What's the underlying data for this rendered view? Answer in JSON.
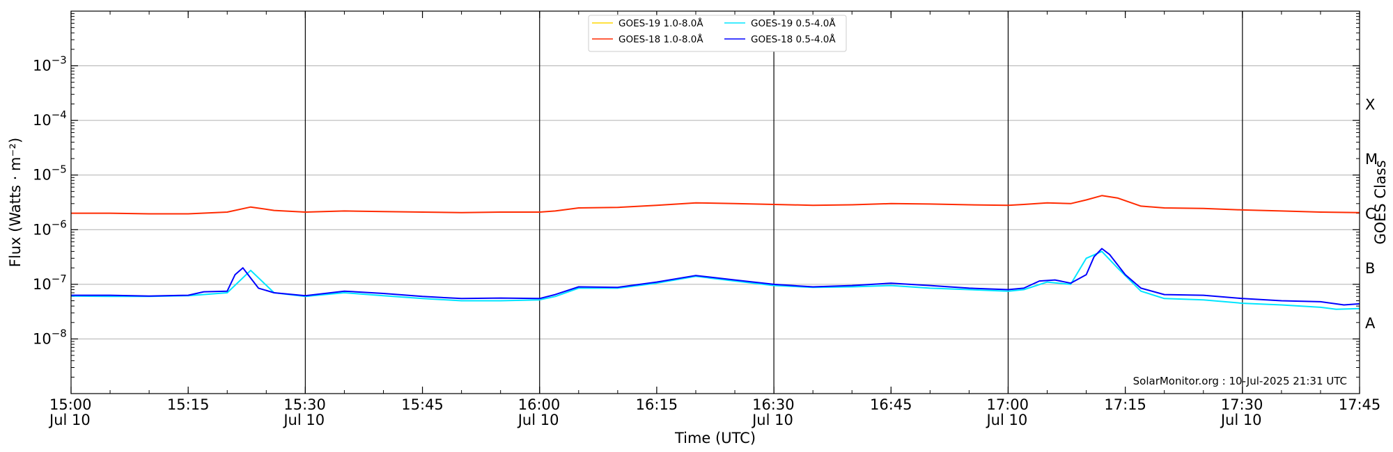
{
  "chart_data": {
    "type": "line",
    "title": "",
    "xlabel": "Time (UTC)",
    "ylabel": "Flux (Watts · m⁻²)",
    "y2label": "GOES Class",
    "yscale": "log",
    "ylim": [
      1e-09,
      0.01
    ],
    "xlim": [
      "15:00",
      "17:45"
    ],
    "grid": true,
    "legend_position": "top-center",
    "x_ticks": [
      {
        "t": "15:00",
        "label": "15:00",
        "sub": "Jul 10"
      },
      {
        "t": "15:15",
        "label": "15:15",
        "sub": ""
      },
      {
        "t": "15:30",
        "label": "15:30",
        "sub": "Jul 10"
      },
      {
        "t": "15:45",
        "label": "15:45",
        "sub": ""
      },
      {
        "t": "16:00",
        "label": "16:00",
        "sub": "Jul 10"
      },
      {
        "t": "16:15",
        "label": "16:15",
        "sub": ""
      },
      {
        "t": "16:30",
        "label": "16:30",
        "sub": "Jul 10"
      },
      {
        "t": "16:45",
        "label": "16:45",
        "sub": ""
      },
      {
        "t": "17:00",
        "label": "17:00",
        "sub": "Jul 10"
      },
      {
        "t": "17:15",
        "label": "17:15",
        "sub": ""
      },
      {
        "t": "17:30",
        "label": "17:30",
        "sub": "Jul 10"
      },
      {
        "t": "17:45",
        "label": "17:45",
        "sub": ""
      }
    ],
    "vlines": [
      "15:30",
      "16:00",
      "16:30",
      "17:00",
      "17:30"
    ],
    "y_ticks": [
      {
        "base": "10",
        "exp": "−3",
        "value": 0.001
      },
      {
        "base": "10",
        "exp": "−4",
        "value": 0.0001
      },
      {
        "base": "10",
        "exp": "−5",
        "value": 1e-05
      },
      {
        "base": "10",
        "exp": "−6",
        "value": 1e-06
      },
      {
        "base": "10",
        "exp": "−7",
        "value": 1e-07
      },
      {
        "base": "10",
        "exp": "−8",
        "value": 1e-08
      }
    ],
    "goes_classes": [
      {
        "label": "X",
        "value": 0.0002
      },
      {
        "label": "M",
        "value": 2e-05
      },
      {
        "label": "C",
        "value": 2e-06
      },
      {
        "label": "B",
        "value": 2e-07
      },
      {
        "label": "A",
        "value": 2e-08
      }
    ],
    "annotation": "SolarMonitor.org : 10-Jul-2025 21:31 UTC",
    "series": [
      {
        "name": "GOES-19 1.0-8.0Å",
        "color": "#ffd700",
        "points": []
      },
      {
        "name": "GOES-18 1.0-8.0Å",
        "color": "#ff2a00",
        "points": [
          [
            "15:00",
            2e-06
          ],
          [
            "15:05",
            2e-06
          ],
          [
            "15:10",
            1.95e-06
          ],
          [
            "15:15",
            1.95e-06
          ],
          [
            "15:20",
            2.1e-06
          ],
          [
            "15:23",
            2.6e-06
          ],
          [
            "15:26",
            2.25e-06
          ],
          [
            "15:30",
            2.1e-06
          ],
          [
            "15:35",
            2.2e-06
          ],
          [
            "15:40",
            2.15e-06
          ],
          [
            "15:45",
            2.1e-06
          ],
          [
            "15:50",
            2.05e-06
          ],
          [
            "15:55",
            2.1e-06
          ],
          [
            "16:00",
            2.1e-06
          ],
          [
            "16:02",
            2.2e-06
          ],
          [
            "16:05",
            2.5e-06
          ],
          [
            "16:10",
            2.55e-06
          ],
          [
            "16:15",
            2.8e-06
          ],
          [
            "16:20",
            3.1e-06
          ],
          [
            "16:25",
            3e-06
          ],
          [
            "16:30",
            2.9e-06
          ],
          [
            "16:35",
            2.8e-06
          ],
          [
            "16:40",
            2.85e-06
          ],
          [
            "16:45",
            3e-06
          ],
          [
            "16:50",
            2.95e-06
          ],
          [
            "16:55",
            2.85e-06
          ],
          [
            "17:00",
            2.8e-06
          ],
          [
            "17:02",
            2.9e-06
          ],
          [
            "17:05",
            3.1e-06
          ],
          [
            "17:08",
            3e-06
          ],
          [
            "17:10",
            3.5e-06
          ],
          [
            "17:12",
            4.2e-06
          ],
          [
            "17:14",
            3.8e-06
          ],
          [
            "17:17",
            2.7e-06
          ],
          [
            "17:20",
            2.5e-06
          ],
          [
            "17:25",
            2.45e-06
          ],
          [
            "17:30",
            2.3e-06
          ],
          [
            "17:35",
            2.2e-06
          ],
          [
            "17:40",
            2.1e-06
          ],
          [
            "17:45",
            2.05e-06
          ]
        ]
      },
      {
        "name": "GOES-19 0.5-4.0Å",
        "color": "#00e5ff",
        "points": [
          [
            "15:00",
            6.1e-08
          ],
          [
            "15:05",
            6e-08
          ],
          [
            "15:10",
            6e-08
          ],
          [
            "15:15",
            6.2e-08
          ],
          [
            "15:20",
            7e-08
          ],
          [
            "15:23",
            1.8e-07
          ],
          [
            "15:26",
            7e-08
          ],
          [
            "15:30",
            6e-08
          ],
          [
            "15:35",
            7e-08
          ],
          [
            "15:40",
            6.2e-08
          ],
          [
            "15:45",
            5.5e-08
          ],
          [
            "15:50",
            5e-08
          ],
          [
            "15:55",
            5e-08
          ],
          [
            "16:00",
            5.2e-08
          ],
          [
            "16:02",
            6e-08
          ],
          [
            "16:05",
            8.5e-08
          ],
          [
            "16:10",
            8.5e-08
          ],
          [
            "16:15",
            1.05e-07
          ],
          [
            "16:20",
            1.4e-07
          ],
          [
            "16:25",
            1.15e-07
          ],
          [
            "16:30",
            9.5e-08
          ],
          [
            "16:35",
            8.8e-08
          ],
          [
            "16:40",
            9e-08
          ],
          [
            "16:45",
            9.5e-08
          ],
          [
            "16:50",
            8.5e-08
          ],
          [
            "16:55",
            8e-08
          ],
          [
            "17:00",
            7.5e-08
          ],
          [
            "17:02",
            8e-08
          ],
          [
            "17:05",
            1.1e-07
          ],
          [
            "17:08",
            1e-07
          ],
          [
            "17:10",
            3e-07
          ],
          [
            "17:12",
            4e-07
          ],
          [
            "17:14",
            2e-07
          ],
          [
            "17:17",
            7.5e-08
          ],
          [
            "17:20",
            5.5e-08
          ],
          [
            "17:25",
            5.2e-08
          ],
          [
            "17:30",
            4.5e-08
          ],
          [
            "17:35",
            4.2e-08
          ],
          [
            "17:40",
            3.8e-08
          ],
          [
            "17:42",
            3.5e-08
          ],
          [
            "17:45",
            3.6e-08
          ]
        ]
      },
      {
        "name": "GOES-18 0.5-4.0Å",
        "color": "#0000ff",
        "points": [
          [
            "15:00",
            6.3e-08
          ],
          [
            "15:05",
            6.3e-08
          ],
          [
            "15:10",
            6.1e-08
          ],
          [
            "15:15",
            6.3e-08
          ],
          [
            "15:17",
            7.3e-08
          ],
          [
            "15:20",
            7.5e-08
          ],
          [
            "15:21",
            1.5e-07
          ],
          [
            "15:22",
            2e-07
          ],
          [
            "15:23",
            1.3e-07
          ],
          [
            "15:24",
            8.5e-08
          ],
          [
            "15:26",
            7e-08
          ],
          [
            "15:30",
            6.2e-08
          ],
          [
            "15:35",
            7.5e-08
          ],
          [
            "15:40",
            6.8e-08
          ],
          [
            "15:45",
            6e-08
          ],
          [
            "15:50",
            5.5e-08
          ],
          [
            "15:55",
            5.6e-08
          ],
          [
            "16:00",
            5.5e-08
          ],
          [
            "16:02",
            6.5e-08
          ],
          [
            "16:05",
            9e-08
          ],
          [
            "16:10",
            8.8e-08
          ],
          [
            "16:15",
            1.1e-07
          ],
          [
            "16:20",
            1.45e-07
          ],
          [
            "16:25",
            1.2e-07
          ],
          [
            "16:30",
            1e-07
          ],
          [
            "16:35",
            9e-08
          ],
          [
            "16:40",
            9.5e-08
          ],
          [
            "16:45",
            1.05e-07
          ],
          [
            "16:50",
            9.5e-08
          ],
          [
            "16:55",
            8.5e-08
          ],
          [
            "17:00",
            8e-08
          ],
          [
            "17:02",
            8.5e-08
          ],
          [
            "17:04",
            1.15e-07
          ],
          [
            "17:06",
            1.2e-07
          ],
          [
            "17:08",
            1.05e-07
          ],
          [
            "17:10",
            1.5e-07
          ],
          [
            "17:11",
            3.2e-07
          ],
          [
            "17:12",
            4.5e-07
          ],
          [
            "17:13",
            3.5e-07
          ],
          [
            "17:15",
            1.5e-07
          ],
          [
            "17:17",
            8.5e-08
          ],
          [
            "17:20",
            6.5e-08
          ],
          [
            "17:25",
            6.3e-08
          ],
          [
            "17:30",
            5.5e-08
          ],
          [
            "17:35",
            5e-08
          ],
          [
            "17:40",
            4.8e-08
          ],
          [
            "17:43",
            4.2e-08
          ],
          [
            "17:45",
            4.4e-08
          ]
        ]
      }
    ]
  }
}
